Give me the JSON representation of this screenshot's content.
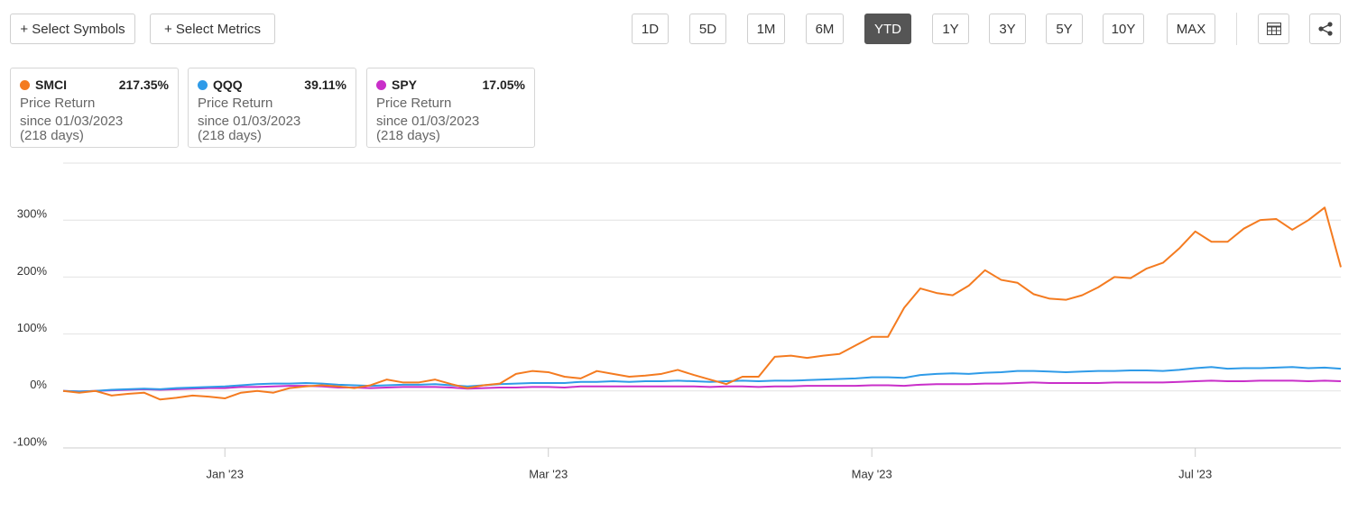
{
  "toolbar": {
    "select_symbols": "+ Select Symbols",
    "select_metrics": "+ Select Metrics",
    "periods": [
      "1D",
      "5D",
      "1M",
      "6M",
      "YTD",
      "1Y",
      "3Y",
      "5Y",
      "10Y",
      "MAX"
    ],
    "active_period": "YTD"
  },
  "cards": [
    {
      "return": "217.35%",
      "metric": "Price Return",
      "since": "since 01/03/2023",
      "days": "(218 days)"
    },
    {
      "return": "39.11%",
      "metric": "Price Return",
      "since": "since 01/03/2023",
      "days": "(218 days)"
    },
    {
      "return": "17.05%",
      "metric": "Price Return",
      "since": "since 01/03/2023",
      "days": "(218 days)"
    }
  ],
  "chart_data": {
    "type": "line",
    "categories": [
      null,
      null,
      null,
      null,
      null,
      null,
      null,
      null,
      null,
      null,
      "Jan '23",
      null,
      null,
      null,
      null,
      null,
      null,
      null,
      null,
      null,
      null,
      null,
      null,
      null,
      null,
      null,
      null,
      null,
      null,
      null,
      "Mar '23",
      null,
      null,
      null,
      null,
      null,
      null,
      null,
      null,
      null,
      null,
      null,
      null,
      null,
      null,
      null,
      null,
      null,
      null,
      null,
      "May '23",
      null,
      null,
      null,
      null,
      null,
      null,
      null,
      null,
      null,
      null,
      null,
      null,
      null,
      null,
      null,
      null,
      null,
      null,
      null,
      "Jul '23",
      null,
      null,
      null,
      null,
      null,
      null,
      null,
      null,
      null
    ],
    "series": [
      {
        "name": "SMCI",
        "color": "#f47b20",
        "values": [
          0,
          -3,
          0,
          -8,
          -5,
          -3,
          -15,
          -12,
          -8,
          -10,
          -13,
          -3,
          0,
          -3,
          5,
          8,
          10,
          8,
          5,
          10,
          20,
          15,
          15,
          20,
          12,
          5,
          10,
          13,
          30,
          35,
          33,
          25,
          22,
          35,
          30,
          25,
          27,
          30,
          37,
          28,
          20,
          12,
          25,
          25,
          60,
          62,
          58,
          62,
          65,
          80,
          95,
          95,
          146,
          180,
          172,
          168,
          185,
          212,
          195,
          190,
          170,
          162,
          160,
          168,
          182,
          200,
          198,
          215,
          225,
          250,
          280,
          262,
          262,
          285,
          300,
          302,
          283,
          300,
          322,
          217.35
        ]
      },
      {
        "name": "QQQ",
        "color": "#2f9be8",
        "values": [
          0,
          -1,
          0,
          2,
          3,
          4,
          3,
          5,
          6,
          7,
          8,
          10,
          12,
          13,
          13,
          14,
          13,
          11,
          10,
          9,
          10,
          11,
          11,
          12,
          10,
          8,
          10,
          12,
          13,
          14,
          14,
          14,
          16,
          16,
          17,
          16,
          17,
          17,
          18,
          17,
          16,
          17,
          18,
          17,
          18,
          18,
          19,
          20,
          21,
          22,
          24,
          24,
          23,
          28,
          30,
          31,
          30,
          32,
          33,
          35,
          35,
          34,
          33,
          34,
          35,
          35,
          36,
          36,
          35,
          37,
          40,
          42,
          39,
          40,
          40,
          41,
          42,
          40,
          41,
          39.11
        ]
      },
      {
        "name": "SPY",
        "color": "#c92fc9",
        "values": [
          0,
          -1,
          0,
          1,
          2,
          3,
          2,
          3,
          4,
          5,
          5,
          7,
          7,
          8,
          9,
          9,
          8,
          6,
          6,
          5,
          6,
          7,
          7,
          7,
          6,
          4,
          5,
          6,
          6,
          7,
          7,
          6,
          8,
          8,
          8,
          8,
          8,
          8,
          8,
          8,
          7,
          8,
          8,
          7,
          8,
          8,
          9,
          9,
          9,
          9,
          10,
          10,
          9,
          11,
          12,
          12,
          12,
          13,
          13,
          14,
          15,
          14,
          14,
          14,
          14,
          15,
          15,
          15,
          15,
          16,
          17,
          18,
          17,
          17,
          18,
          18,
          18,
          17,
          18,
          17.05
        ]
      }
    ],
    "ylim": [
      -100,
      400
    ],
    "yticks": [
      {
        "value": -100,
        "label": "-100%"
      },
      {
        "value": 0,
        "label": "0%"
      },
      {
        "value": 100,
        "label": "100%"
      },
      {
        "value": 200,
        "label": "200%"
      },
      {
        "value": 300,
        "label": "300%"
      }
    ],
    "grid": true
  }
}
